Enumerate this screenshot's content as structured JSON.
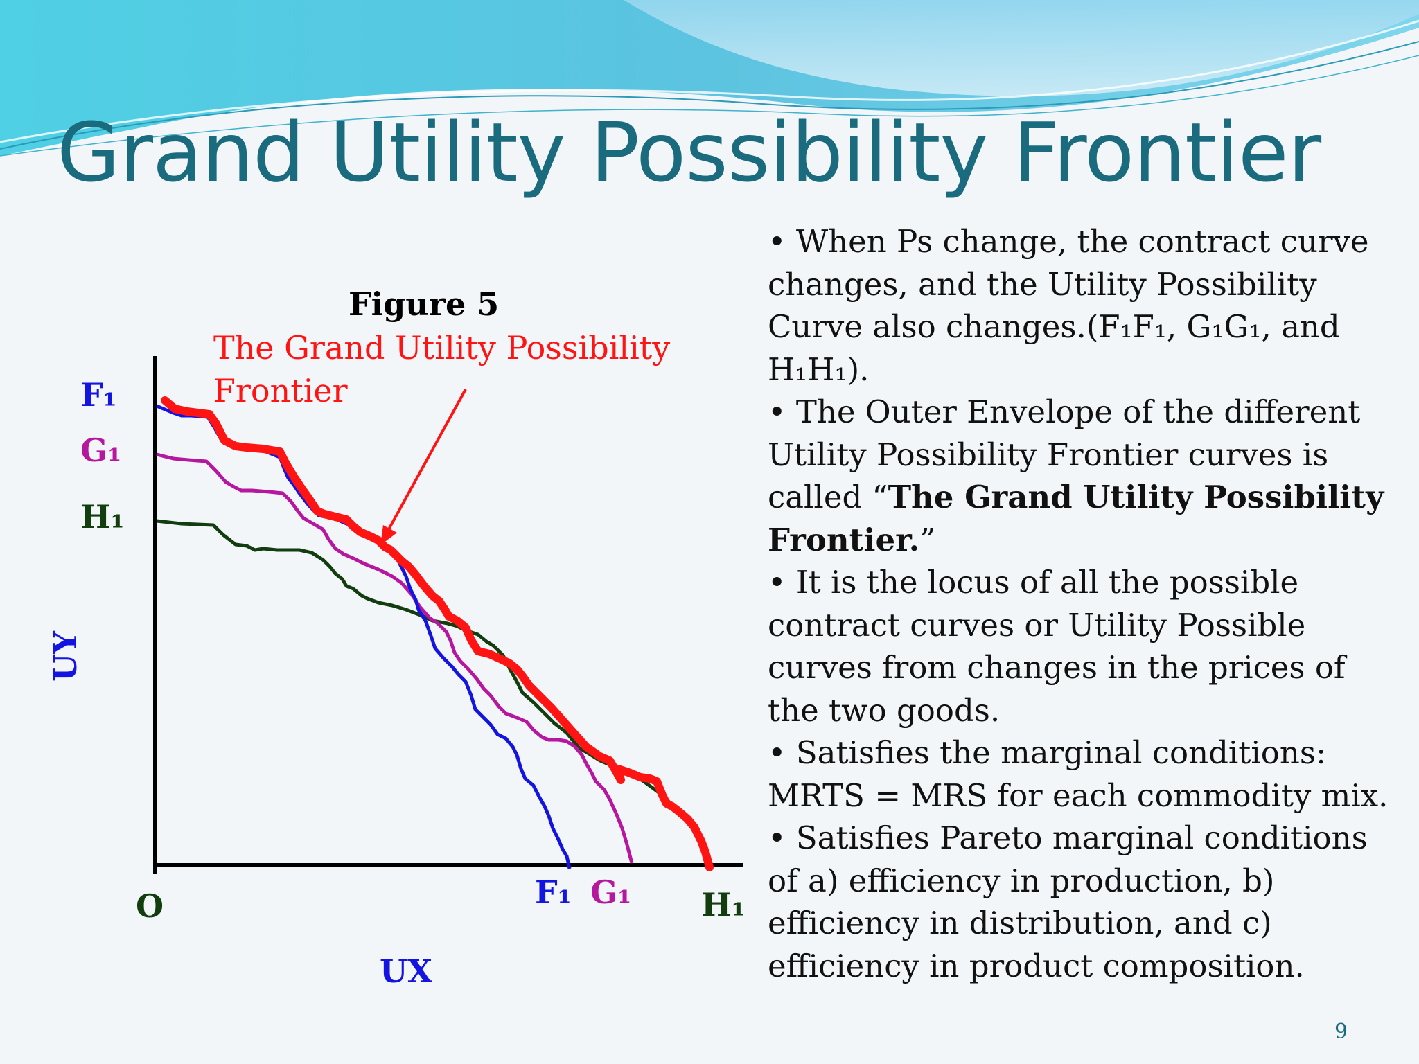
{
  "title": "Grand Utility Possibility Frontier",
  "figure": {
    "caption": "Figure 5",
    "subtitle_line1": "The Grand Utility Possibility",
    "subtitle_line2": "Frontier",
    "y_axis_label": "UY",
    "x_axis_label": "UX",
    "origin_label": "O",
    "curves": [
      {
        "name": "F1",
        "y_label": "F₁",
        "x_label": "F₁",
        "color": "#1414e0"
      },
      {
        "name": "G1",
        "y_label": "G₁",
        "x_label": "G₁",
        "color": "#b5179e"
      },
      {
        "name": "H1",
        "y_label": "H₁",
        "x_label": "H₁",
        "color": "#123d0e"
      }
    ],
    "envelope_color": "#ff1414",
    "arrow_color": "#ff1414"
  },
  "bullets": [
    {
      "text": "• When Ps change, the contract curve changes, and the Utility Possibility Curve also changes.(F₁F₁, G₁G₁, and H₁H₁)."
    },
    {
      "pre": "• The Outer Envelope of the different Utility Possibility Frontier curves is called “",
      "bold": "The Grand Utility Possibility Frontier.",
      "post": "”"
    },
    {
      "text": "• It is the locus of all the possible contract curves or Utility Possible curves from changes in the prices of the two goods."
    },
    {
      "text": "• Satisfies the marginal conditions: MRTS = MRS for each commodity mix."
    },
    {
      "text": "• Satisfies Pareto marginal conditions of a) efficiency in production, b) efficiency in distribution, and c) efficiency in product composition."
    }
  ],
  "page_number": "9"
}
